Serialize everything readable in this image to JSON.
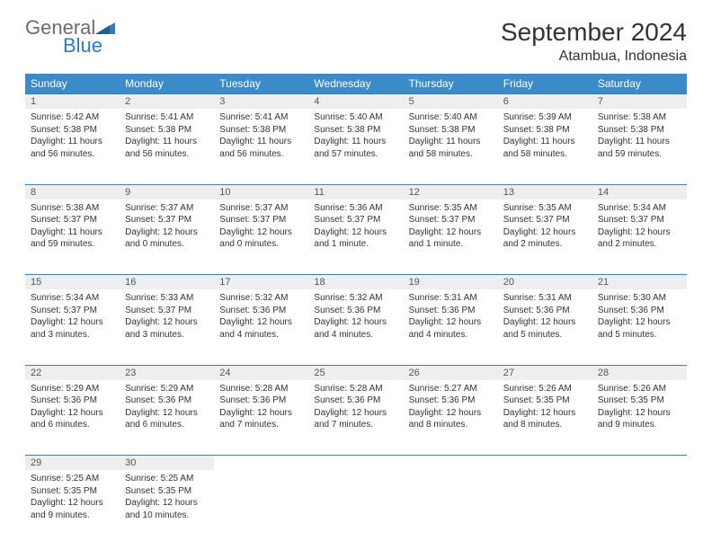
{
  "logo": {
    "word1": "General",
    "word2": "Blue"
  },
  "title": "September 2024",
  "location": "Atambua, Indonesia",
  "colors": {
    "header_bg": "#3b8bc9",
    "header_text": "#ffffff",
    "daynum_bg": "#eeeeee",
    "border": "#3b7fb5",
    "logo_gray": "#6b6b6b",
    "logo_blue": "#2f7bbf"
  },
  "dayHeaders": [
    "Sunday",
    "Monday",
    "Tuesday",
    "Wednesday",
    "Thursday",
    "Friday",
    "Saturday"
  ],
  "weeks": [
    [
      {
        "n": "1",
        "sr": "5:42 AM",
        "ss": "5:38 PM",
        "d": "11 hours and 56 minutes."
      },
      {
        "n": "2",
        "sr": "5:41 AM",
        "ss": "5:38 PM",
        "d": "11 hours and 56 minutes."
      },
      {
        "n": "3",
        "sr": "5:41 AM",
        "ss": "5:38 PM",
        "d": "11 hours and 56 minutes."
      },
      {
        "n": "4",
        "sr": "5:40 AM",
        "ss": "5:38 PM",
        "d": "11 hours and 57 minutes."
      },
      {
        "n": "5",
        "sr": "5:40 AM",
        "ss": "5:38 PM",
        "d": "11 hours and 58 minutes."
      },
      {
        "n": "6",
        "sr": "5:39 AM",
        "ss": "5:38 PM",
        "d": "11 hours and 58 minutes."
      },
      {
        "n": "7",
        "sr": "5:38 AM",
        "ss": "5:38 PM",
        "d": "11 hours and 59 minutes."
      }
    ],
    [
      {
        "n": "8",
        "sr": "5:38 AM",
        "ss": "5:37 PM",
        "d": "11 hours and 59 minutes."
      },
      {
        "n": "9",
        "sr": "5:37 AM",
        "ss": "5:37 PM",
        "d": "12 hours and 0 minutes."
      },
      {
        "n": "10",
        "sr": "5:37 AM",
        "ss": "5:37 PM",
        "d": "12 hours and 0 minutes."
      },
      {
        "n": "11",
        "sr": "5:36 AM",
        "ss": "5:37 PM",
        "d": "12 hours and 1 minute."
      },
      {
        "n": "12",
        "sr": "5:35 AM",
        "ss": "5:37 PM",
        "d": "12 hours and 1 minute."
      },
      {
        "n": "13",
        "sr": "5:35 AM",
        "ss": "5:37 PM",
        "d": "12 hours and 2 minutes."
      },
      {
        "n": "14",
        "sr": "5:34 AM",
        "ss": "5:37 PM",
        "d": "12 hours and 2 minutes."
      }
    ],
    [
      {
        "n": "15",
        "sr": "5:34 AM",
        "ss": "5:37 PM",
        "d": "12 hours and 3 minutes."
      },
      {
        "n": "16",
        "sr": "5:33 AM",
        "ss": "5:37 PM",
        "d": "12 hours and 3 minutes."
      },
      {
        "n": "17",
        "sr": "5:32 AM",
        "ss": "5:36 PM",
        "d": "12 hours and 4 minutes."
      },
      {
        "n": "18",
        "sr": "5:32 AM",
        "ss": "5:36 PM",
        "d": "12 hours and 4 minutes."
      },
      {
        "n": "19",
        "sr": "5:31 AM",
        "ss": "5:36 PM",
        "d": "12 hours and 4 minutes."
      },
      {
        "n": "20",
        "sr": "5:31 AM",
        "ss": "5:36 PM",
        "d": "12 hours and 5 minutes."
      },
      {
        "n": "21",
        "sr": "5:30 AM",
        "ss": "5:36 PM",
        "d": "12 hours and 5 minutes."
      }
    ],
    [
      {
        "n": "22",
        "sr": "5:29 AM",
        "ss": "5:36 PM",
        "d": "12 hours and 6 minutes."
      },
      {
        "n": "23",
        "sr": "5:29 AM",
        "ss": "5:36 PM",
        "d": "12 hours and 6 minutes."
      },
      {
        "n": "24",
        "sr": "5:28 AM",
        "ss": "5:36 PM",
        "d": "12 hours and 7 minutes."
      },
      {
        "n": "25",
        "sr": "5:28 AM",
        "ss": "5:36 PM",
        "d": "12 hours and 7 minutes."
      },
      {
        "n": "26",
        "sr": "5:27 AM",
        "ss": "5:36 PM",
        "d": "12 hours and 8 minutes."
      },
      {
        "n": "27",
        "sr": "5:26 AM",
        "ss": "5:35 PM",
        "d": "12 hours and 8 minutes."
      },
      {
        "n": "28",
        "sr": "5:26 AM",
        "ss": "5:35 PM",
        "d": "12 hours and 9 minutes."
      }
    ],
    [
      {
        "n": "29",
        "sr": "5:25 AM",
        "ss": "5:35 PM",
        "d": "12 hours and 9 minutes."
      },
      {
        "n": "30",
        "sr": "5:25 AM",
        "ss": "5:35 PM",
        "d": "12 hours and 10 minutes."
      },
      null,
      null,
      null,
      null,
      null
    ]
  ],
  "labels": {
    "sunrise": "Sunrise:",
    "sunset": "Sunset:",
    "daylight": "Daylight:"
  }
}
